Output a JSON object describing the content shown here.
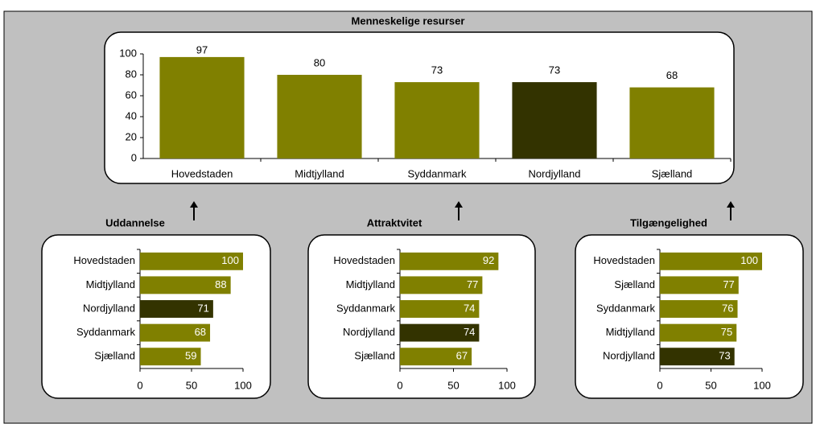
{
  "chart_data": [
    {
      "type": "bar",
      "title": "Menneskelige resurser",
      "categories": [
        "Hovedstaden",
        "Midtjylland",
        "Syddanmark",
        "Nordjylland",
        "Sjælland"
      ],
      "values": [
        97,
        80,
        73,
        73,
        68
      ],
      "colors": [
        "#808000",
        "#808000",
        "#808000",
        "#333300",
        "#808000"
      ],
      "ylim": [
        0,
        100
      ],
      "yticks": [
        0,
        20,
        40,
        60,
        80,
        100
      ]
    },
    {
      "type": "hbar",
      "title": "Uddannelse",
      "categories": [
        "Hovedstaden",
        "Midtjylland",
        "Nordjylland",
        "Syddanmark",
        "Sjælland"
      ],
      "values": [
        100,
        88,
        71,
        68,
        59
      ],
      "colors": [
        "#808000",
        "#808000",
        "#333300",
        "#808000",
        "#808000"
      ],
      "xlim": [
        0,
        100
      ],
      "xticks": [
        0,
        50,
        100
      ]
    },
    {
      "type": "hbar",
      "title": "Attraktvitet",
      "categories": [
        "Hovedstaden",
        "Midtjylland",
        "Syddanmark",
        "Nordjylland",
        "Sjælland"
      ],
      "values": [
        92,
        77,
        74,
        74,
        67
      ],
      "colors": [
        "#808000",
        "#808000",
        "#808000",
        "#333300",
        "#808000"
      ],
      "xlim": [
        0,
        100
      ],
      "xticks": [
        0,
        50,
        100
      ]
    },
    {
      "type": "hbar",
      "title": "Tilgængelighed",
      "categories": [
        "Hovedstaden",
        "Sjælland",
        "Syddanmark",
        "Midtjylland",
        "Nordjylland"
      ],
      "values": [
        100,
        77,
        76,
        75,
        73
      ],
      "colors": [
        "#808000",
        "#808000",
        "#808000",
        "#808000",
        "#333300"
      ],
      "xlim": [
        0,
        100
      ],
      "xticks": [
        0,
        50,
        100
      ]
    }
  ]
}
